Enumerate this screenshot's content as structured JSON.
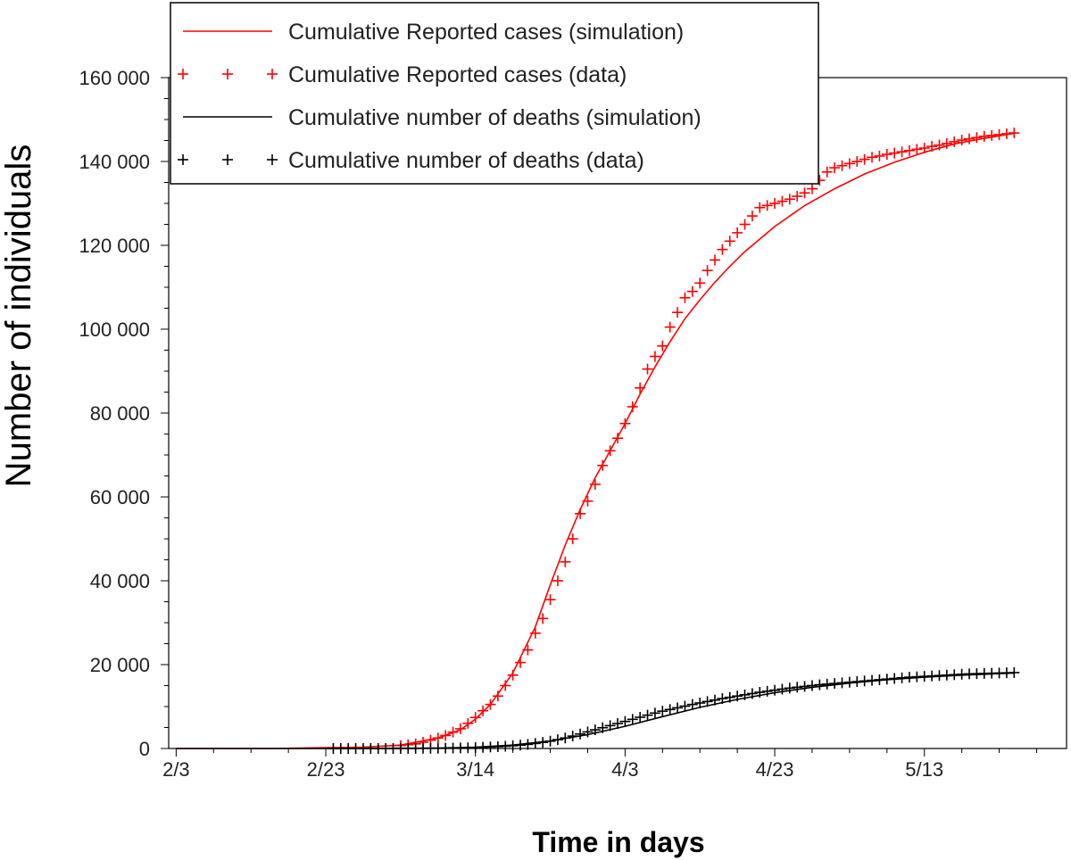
{
  "chart_data": {
    "type": "line",
    "title": "",
    "xlabel": "Time in days",
    "ylabel": "Number of individuals",
    "x_tick_labels": [
      "2/3",
      "2/23",
      "3/14",
      "4/3",
      "4/23",
      "5/13"
    ],
    "x_tick_days": [
      0,
      20,
      40,
      60,
      80,
      100
    ],
    "y_tick_labels": [
      "0",
      "20 000",
      "40 000",
      "60 000",
      "80 000",
      "100 000",
      "120 000",
      "140 000",
      "160 000"
    ],
    "y_tick_values": [
      0,
      20000,
      40000,
      60000,
      80000,
      100000,
      120000,
      140000,
      160000
    ],
    "xlim_days": [
      -1,
      119
    ],
    "ylim": [
      0,
      160000
    ],
    "grid": false,
    "legend_position": "top-left",
    "series": [
      {
        "name": "Cumulative Reported cases (simulation)",
        "kind": "line",
        "color": "#ff0000",
        "x_days": [
          0,
          13,
          20,
          25,
          30,
          35,
          38,
          40,
          42,
          45,
          48,
          50,
          52,
          54,
          56,
          58,
          60,
          62,
          64,
          66,
          68,
          70,
          72,
          74,
          76,
          80,
          84,
          88,
          92,
          96,
          100,
          104,
          108,
          112
        ],
        "values": [
          0,
          0,
          200,
          300,
          800,
          2500,
          4500,
          7000,
          10500,
          18000,
          29000,
          39000,
          48500,
          57000,
          64500,
          71000,
          77500,
          84500,
          91000,
          97000,
          102500,
          107000,
          111200,
          115000,
          118500,
          124500,
          129500,
          133500,
          137000,
          139800,
          142200,
          144200,
          145500,
          146700
        ]
      },
      {
        "name": "Cumulative Reported cases (data)",
        "kind": "markers",
        "color": "#ff0000",
        "x_days": [
          30,
          31,
          32,
          33,
          34,
          35,
          36,
          37,
          38,
          39,
          40,
          41,
          42,
          43,
          44,
          45,
          46,
          47,
          48,
          49,
          50,
          51,
          52,
          53,
          54,
          55,
          56,
          57,
          58,
          59,
          60,
          61,
          62,
          63,
          64,
          65,
          66,
          67,
          68,
          69,
          70,
          71,
          72,
          73,
          74,
          75,
          76,
          77,
          78,
          79,
          80,
          81,
          82,
          83,
          84,
          85,
          86,
          87,
          88,
          89,
          90,
          91,
          92,
          93,
          94,
          95,
          96,
          97,
          98,
          99,
          100,
          101,
          102,
          103,
          104,
          105,
          106,
          107,
          108,
          109,
          110,
          111,
          112
        ],
        "values": [
          700,
          900,
          1100,
          1500,
          2000,
          2500,
          3100,
          3900,
          4700,
          6000,
          7400,
          9000,
          10500,
          12500,
          15000,
          17500,
          20500,
          23500,
          27500,
          31000,
          35500,
          40000,
          44500,
          50000,
          56000,
          59000,
          63000,
          67500,
          71000,
          74000,
          77500,
          81500,
          86000,
          90500,
          93500,
          96000,
          100500,
          104000,
          107500,
          109000,
          111000,
          114000,
          116500,
          119000,
          121000,
          123000,
          125000,
          127000,
          129000,
          129500,
          130000,
          130500,
          131000,
          131700,
          132500,
          133500,
          135500,
          137500,
          138500,
          139000,
          139500,
          140000,
          140500,
          141000,
          141300,
          141700,
          142000,
          142300,
          142600,
          142900,
          143200,
          143600,
          143900,
          144300,
          144700,
          145100,
          145400,
          145700,
          146000,
          146200,
          146400,
          146600,
          146800
        ]
      },
      {
        "name": "Cumulative number of deaths (simulation)",
        "kind": "line",
        "color": "#000000",
        "x_days": [
          0,
          20,
          35,
          40,
          45,
          50,
          55,
          60,
          65,
          70,
          75,
          80,
          85,
          90,
          95,
          100,
          105,
          112
        ],
        "values": [
          0,
          0,
          100,
          300,
          800,
          1800,
          3300,
          5300,
          7600,
          9800,
          11700,
          13300,
          14600,
          15600,
          16400,
          17000,
          17500,
          18000
        ]
      },
      {
        "name": "Cumulative number of deaths (data)",
        "kind": "markers",
        "color": "#000000",
        "x_days": [
          21,
          22,
          23,
          24,
          25,
          26,
          27,
          28,
          29,
          30,
          31,
          32,
          33,
          34,
          35,
          36,
          37,
          38,
          39,
          40,
          41,
          42,
          43,
          44,
          45,
          46,
          47,
          48,
          49,
          50,
          51,
          52,
          53,
          54,
          55,
          56,
          57,
          58,
          59,
          60,
          61,
          62,
          63,
          64,
          65,
          66,
          67,
          68,
          69,
          70,
          71,
          72,
          73,
          74,
          75,
          76,
          77,
          78,
          79,
          80,
          81,
          82,
          83,
          84,
          85,
          86,
          87,
          88,
          89,
          90,
          91,
          92,
          93,
          94,
          95,
          96,
          97,
          98,
          99,
          100,
          101,
          102,
          103,
          104,
          105,
          106,
          107,
          108,
          109,
          110,
          111,
          112
        ],
        "values": [
          0,
          0,
          0,
          0,
          0,
          0,
          0,
          0,
          0,
          10,
          20,
          30,
          40,
          50,
          60,
          80,
          100,
          130,
          170,
          220,
          280,
          350,
          430,
          530,
          650,
          800,
          980,
          1200,
          1450,
          1750,
          2100,
          2500,
          2950,
          3450,
          3950,
          4450,
          4950,
          5450,
          5950,
          6450,
          6950,
          7450,
          7950,
          8450,
          8900,
          9300,
          9700,
          10100,
          10500,
          10850,
          11200,
          11550,
          11900,
          12200,
          12500,
          12800,
          13100,
          13400,
          13650,
          13900,
          14150,
          14400,
          14600,
          14800,
          15000,
          15200,
          15350,
          15500,
          15650,
          15800,
          15950,
          16100,
          16250,
          16400,
          16550,
          16700,
          16850,
          17000,
          17100,
          17200,
          17300,
          17400,
          17500,
          17600,
          17700,
          17800,
          17850,
          17900,
          17950,
          18000,
          18050,
          18100
        ]
      }
    ]
  }
}
